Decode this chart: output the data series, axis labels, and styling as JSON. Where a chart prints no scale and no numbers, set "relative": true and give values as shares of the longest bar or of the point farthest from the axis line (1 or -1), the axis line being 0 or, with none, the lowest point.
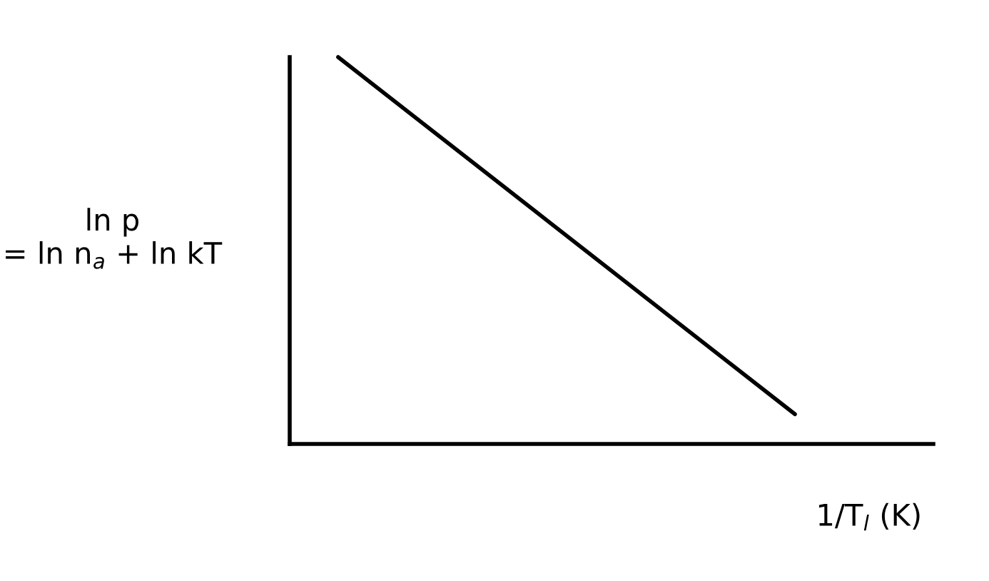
{
  "chart_data": {
    "type": "line",
    "relative": true,
    "ylabel": "ln p\n= ln n$_{a}$ + ln kT",
    "xlabel": "1/T$_{l}$ (K)",
    "categories": [
      null,
      null
    ],
    "series": [
      {
        "color": "#000000",
        "values": [
          1,
          0.077
        ]
      }
    ]
  }
}
